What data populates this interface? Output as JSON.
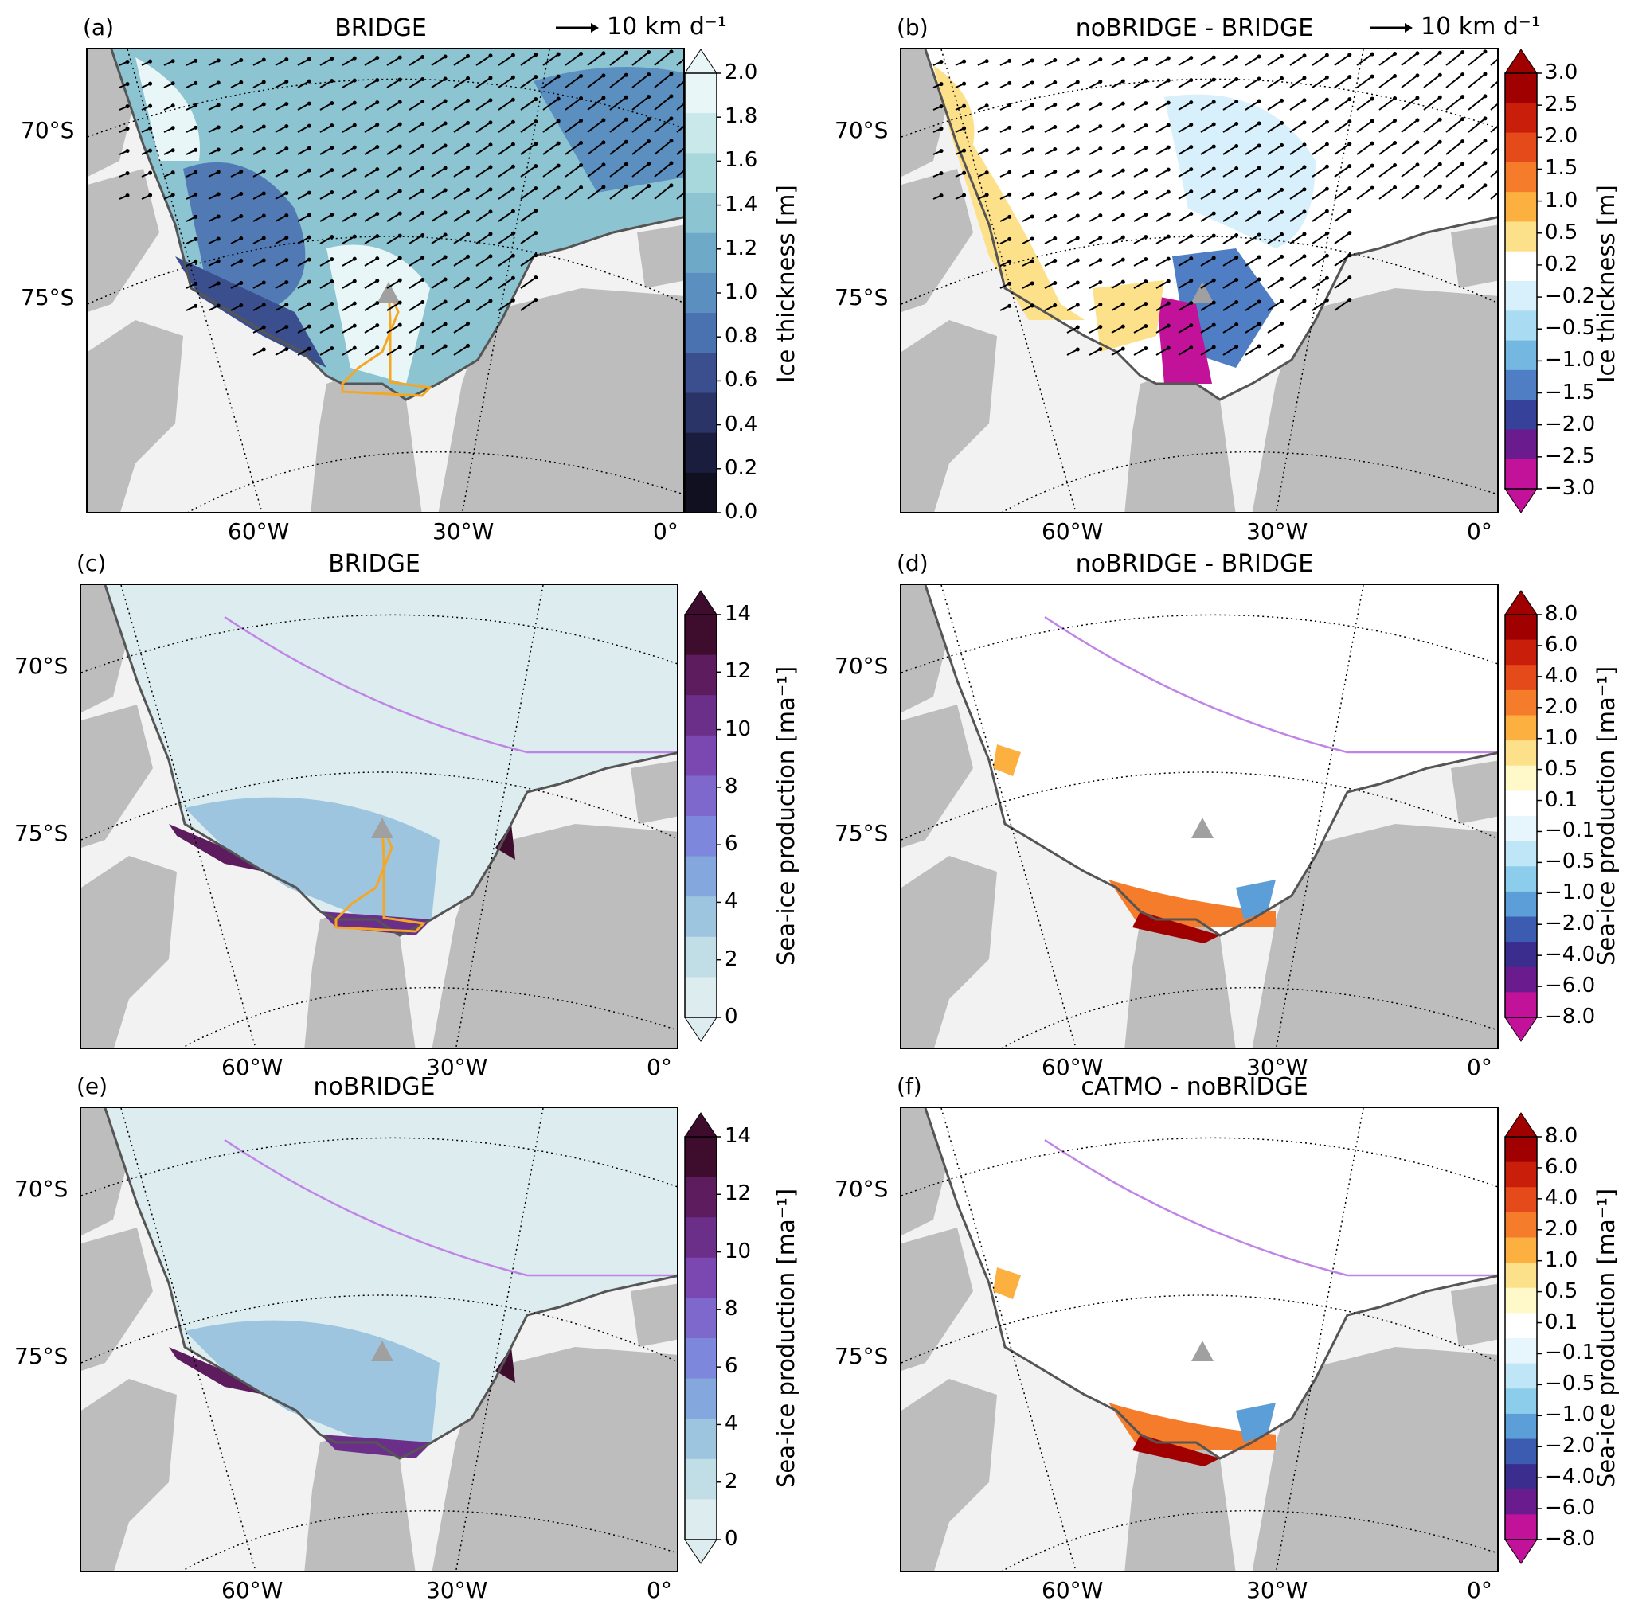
{
  "panels": [
    {
      "id": "a",
      "label": "(a)",
      "title": "BRIDGE",
      "ref_vector": "10 km d⁻¹",
      "field": "thickness",
      "vectors": true,
      "icefront": true,
      "cmap": "blues_thick",
      "cbar": {
        "title": "Ice thickness [m]",
        "ticks": [
          "2.0",
          "1.8",
          "1.6",
          "1.4",
          "1.2",
          "1.0",
          "0.8",
          "0.6",
          "0.4",
          "0.2",
          "0.0"
        ],
        "extend": "max"
      }
    },
    {
      "id": "b",
      "label": "(b)",
      "title": "noBRIDGE - BRIDGE",
      "ref_vector": "10 km d⁻¹",
      "field": "thickness_diff",
      "vectors": true,
      "icefront": false,
      "cmap": "div_thick",
      "cbar": {
        "title": "Ice thickness [m]",
        "ticks": [
          "3.0",
          "2.5",
          "2.0",
          "1.5",
          "1.0",
          "0.5",
          "0.2",
          "−0.2",
          "−0.5",
          "−1.0",
          "−1.5",
          "−2.0",
          "−2.5",
          "−3.0"
        ],
        "extend": "both"
      }
    },
    {
      "id": "c",
      "label": "(c)",
      "title": "BRIDGE",
      "field": "production",
      "vectors": false,
      "icefront": true,
      "cmap": "purples",
      "cbar": {
        "title": "Sea-ice production [ma⁻¹]",
        "ticks": [
          "14",
          "12",
          "10",
          "8",
          "6",
          "4",
          "2",
          "0"
        ],
        "extend": "both"
      }
    },
    {
      "id": "d",
      "label": "(d)",
      "title": "noBRIDGE - BRIDGE",
      "field": "production_diff",
      "vectors": false,
      "icefront": false,
      "cmap": "div_prod",
      "cbar": {
        "title": "Sea-ice production [ma⁻¹]",
        "ticks": [
          "8.0",
          "6.0",
          "4.0",
          "2.0",
          "1.0",
          "0.5",
          "0.1",
          "−0.1",
          "−0.5",
          "−1.0",
          "−2.0",
          "−4.0",
          "−6.0",
          "−8.0"
        ],
        "extend": "both"
      }
    },
    {
      "id": "e",
      "label": "(e)",
      "title": "noBRIDGE",
      "field": "production",
      "vectors": false,
      "icefront": false,
      "cmap": "purples",
      "cbar": {
        "title": "Sea-ice production [ma⁻¹]",
        "ticks": [
          "14",
          "12",
          "10",
          "8",
          "6",
          "4",
          "2",
          "0"
        ],
        "extend": "both"
      }
    },
    {
      "id": "f",
      "label": "(f)",
      "title": "cATMO - noBRIDGE",
      "field": "production_diff2",
      "vectors": false,
      "icefront": false,
      "cmap": "div_prod",
      "cbar": {
        "title": "Sea-ice production [ma⁻¹]",
        "ticks": [
          "8.0",
          "6.0",
          "4.0",
          "2.0",
          "1.0",
          "0.5",
          "0.1",
          "−0.1",
          "−0.5",
          "−1.0",
          "−2.0",
          "−4.0",
          "−6.0",
          "−8.0"
        ],
        "extend": "both"
      }
    }
  ],
  "axes": {
    "lat_labels": [
      "70°S",
      "75°S"
    ],
    "lon_labels": [
      "60°W",
      "30°W",
      "0°"
    ]
  },
  "colors": {
    "land": "#bdbdbd",
    "ice_shelf": "#f2f2f2",
    "coast": "#555555",
    "ice_front": "#f5a623",
    "shelf_break": "#c084e6",
    "marker": "#a0a0a0"
  },
  "colormaps": {
    "blues_thick": [
      "#e8f6f7",
      "#c9e8ea",
      "#a9d8dc",
      "#8cc4d2",
      "#6fa9c8",
      "#5a8fc0",
      "#4a72b0",
      "#3b4f8e",
      "#2b3466",
      "#1b1d3e",
      "#101020"
    ],
    "div_thick": [
      "#a00000",
      "#c81e0a",
      "#e44a1a",
      "#f47c2a",
      "#fbb040",
      "#fde08a",
      "#ffffff",
      "#d7f0fb",
      "#a9dcf2",
      "#74b7e0",
      "#4f7ec4",
      "#36429a",
      "#6a1c8f",
      "#c2129a"
    ],
    "purples": [
      "#3e0d2e",
      "#5c1c5e",
      "#6b2f8a",
      "#7a48b0",
      "#7f68cc",
      "#7d88dc",
      "#84a7dd",
      "#9ec5e0",
      "#c1dde5",
      "#dcecef"
    ],
    "div_prod": [
      "#a00000",
      "#c81e0a",
      "#e44a1a",
      "#f47c2a",
      "#fbb040",
      "#fde08a",
      "#fff8c8",
      "#ffffff",
      "#e6f6fc",
      "#bfe6f6",
      "#8ccdec",
      "#5b9ed8",
      "#3b5cb0",
      "#3a2d8e",
      "#6a1c8f",
      "#c2129a"
    ]
  }
}
